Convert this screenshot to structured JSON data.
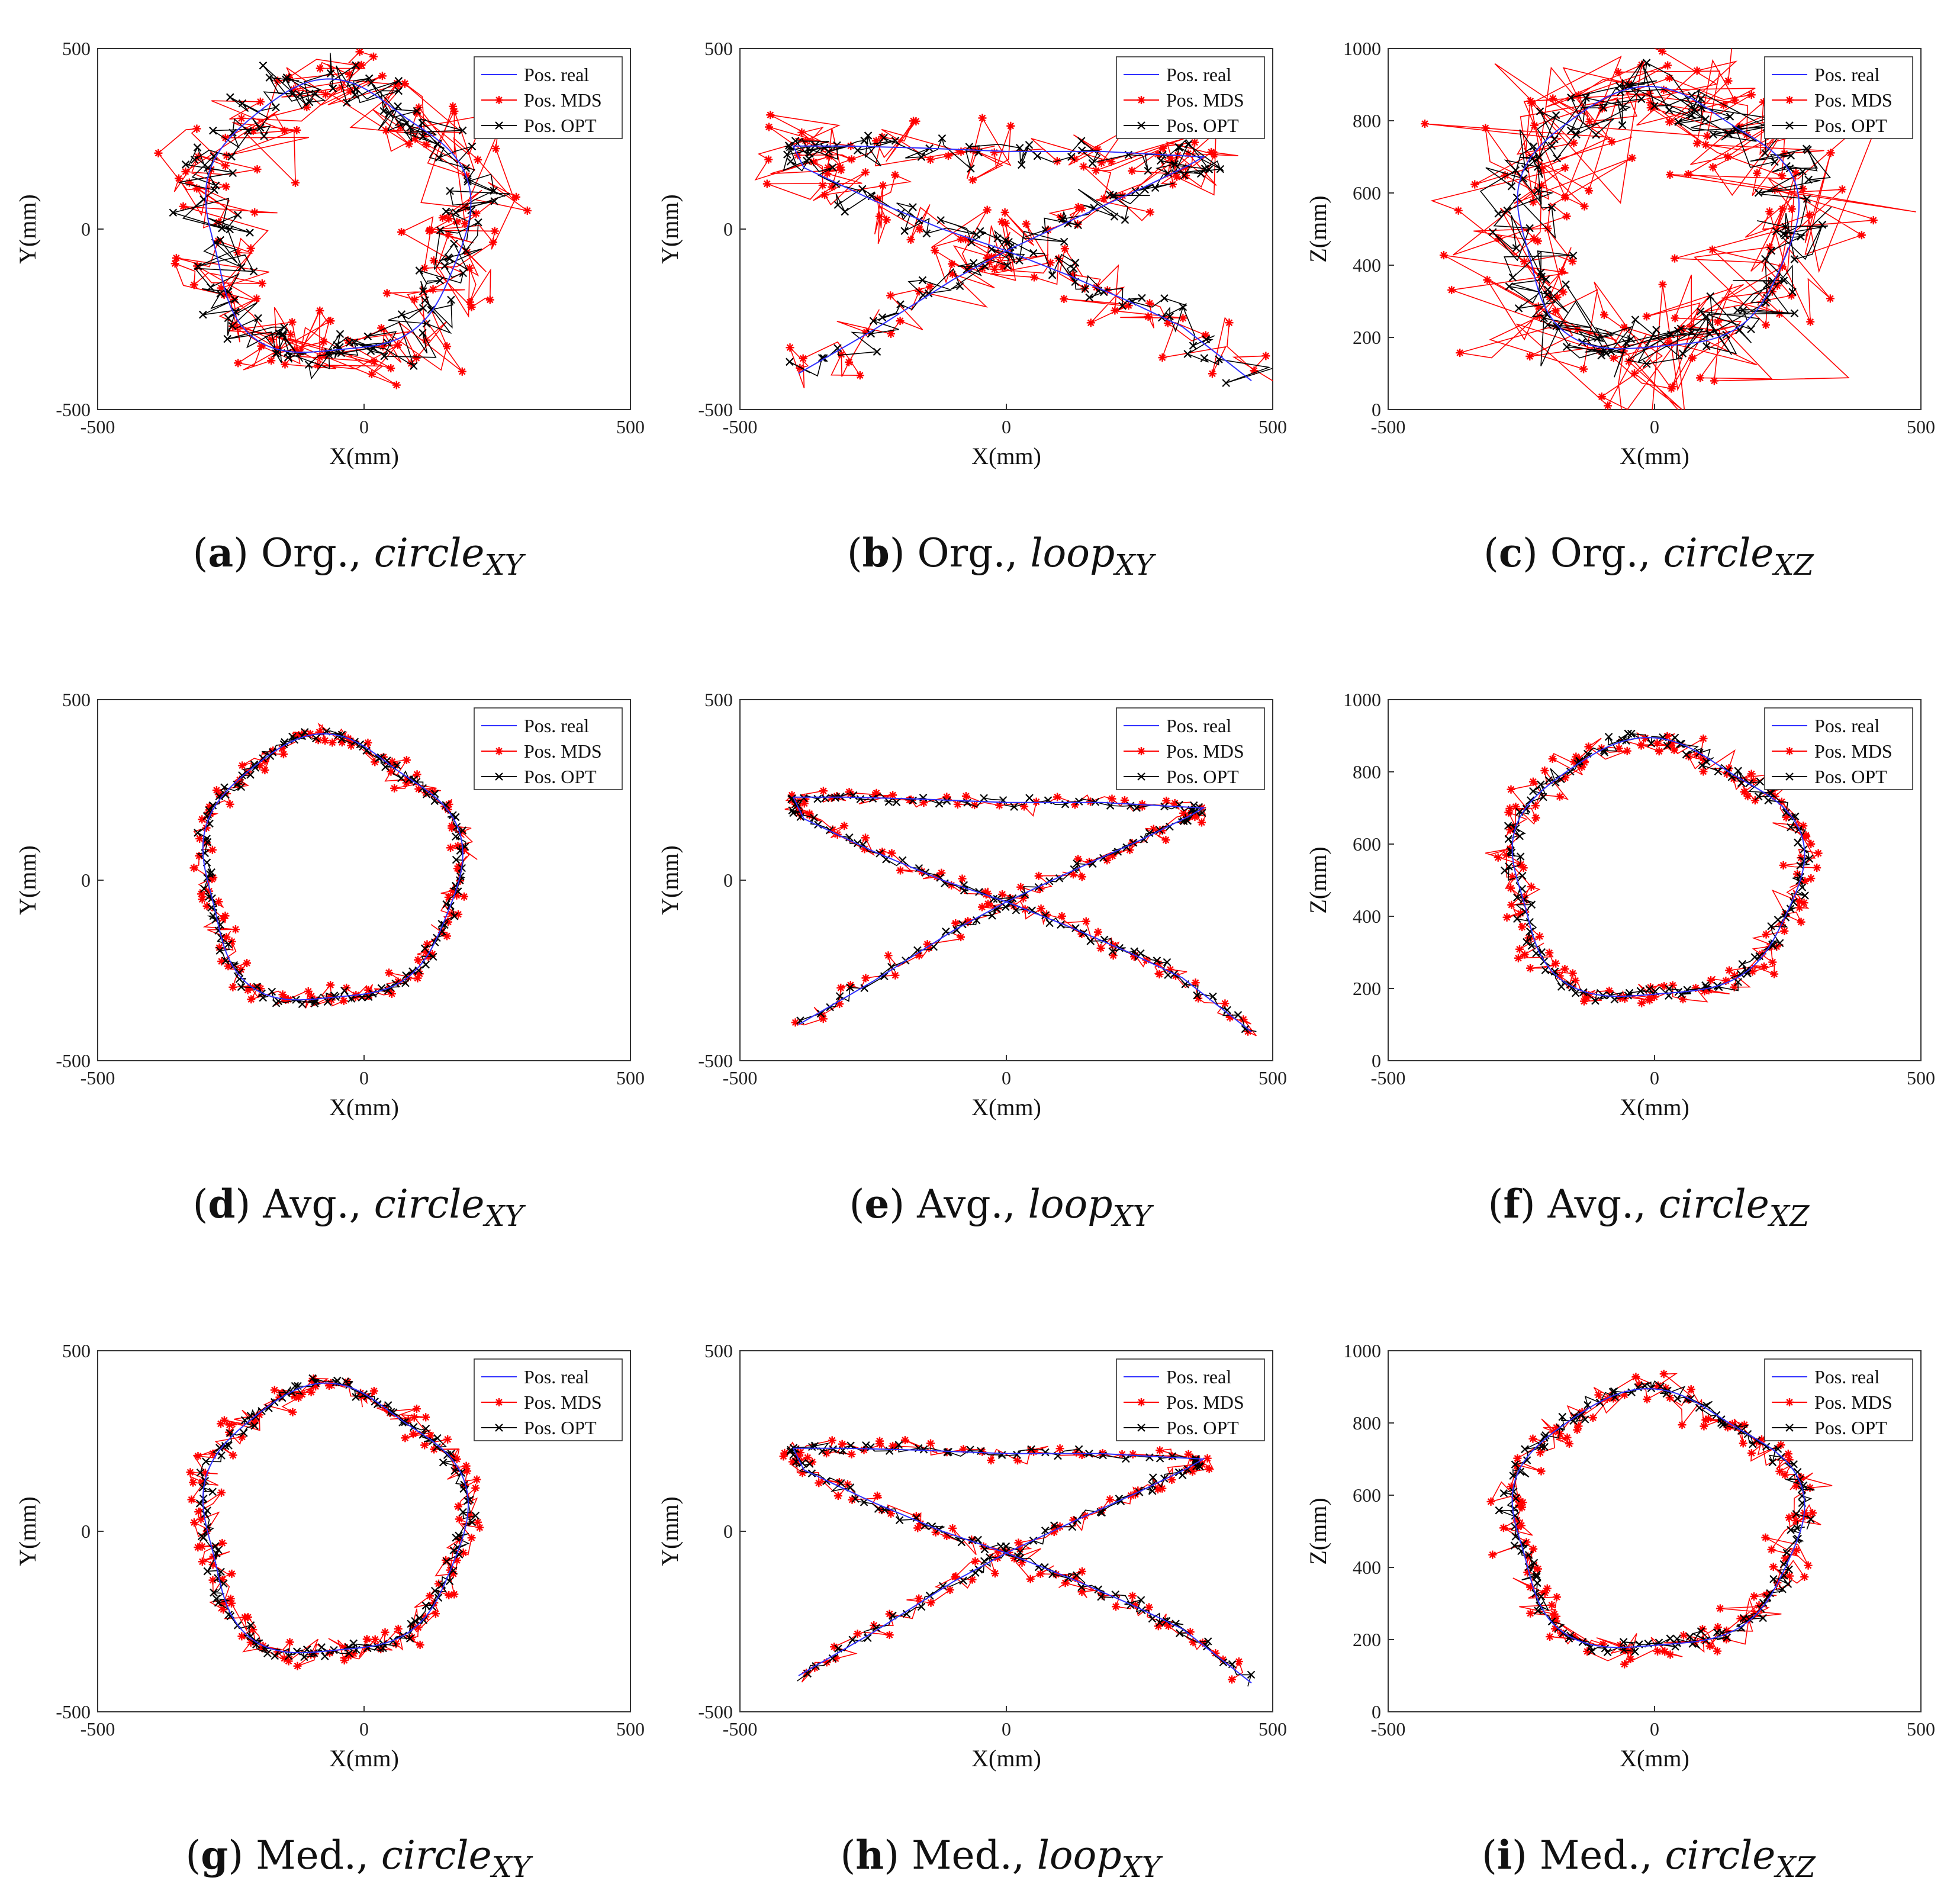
{
  "figure": {
    "legend_items": [
      "Pos. real",
      "Pos. MDS",
      "Pos. OPT"
    ],
    "colors": {
      "real": "#3030ff",
      "mds": "#ff0000",
      "opt": "#000000"
    }
  },
  "chart_data": [
    {
      "type": "line",
      "panel": "a",
      "caption_prefix": "Org.,",
      "caption_var": "circle",
      "caption_sub": "XY",
      "shape": "circle",
      "center": [
        -55,
        25
      ],
      "radii": [
        245,
        375
      ],
      "noise": {
        "opt": 45,
        "mds": 85
      },
      "xlabel": "X(mm)",
      "ylabel": "Y(mm)",
      "xlim": [
        -500,
        500
      ],
      "ylim": [
        -500,
        500
      ],
      "xticks": [
        -500,
        0,
        500
      ],
      "yticks": [
        -500,
        0,
        500
      ],
      "legend": [
        "Pos. real",
        "Pos. MDS",
        "Pos. OPT"
      ]
    },
    {
      "type": "line",
      "panel": "b",
      "caption_prefix": "Org.,",
      "caption_var": "loop",
      "caption_sub": "XY",
      "shape": "loop",
      "noise": {
        "opt": 35,
        "mds": 65
      },
      "xlabel": "X(mm)",
      "ylabel": "Y(mm)",
      "xlim": [
        -500,
        500
      ],
      "ylim": [
        -500,
        500
      ],
      "xticks": [
        -500,
        0,
        500
      ],
      "yticks": [
        -500,
        0,
        500
      ],
      "legend": [
        "Pos. real",
        "Pos. MDS",
        "Pos. OPT"
      ]
    },
    {
      "type": "line",
      "panel": "c",
      "caption_prefix": "Org.,",
      "caption_var": "circle",
      "caption_sub": "XZ",
      "shape": "circle",
      "center": [
        0,
        520
      ],
      "radii": [
        260,
        360
      ],
      "noise": {
        "opt": 60,
        "mds": 140
      },
      "xlabel": "X(mm)",
      "ylabel": "Z(mm)",
      "xlim": [
        -500,
        500
      ],
      "ylim": [
        0,
        1000
      ],
      "xticks": [
        -500,
        0,
        500
      ],
      "yticks": [
        0,
        200,
        400,
        600,
        800,
        1000
      ],
      "legend": [
        "Pos. real",
        "Pos. MDS",
        "Pos. OPT"
      ]
    },
    {
      "type": "line",
      "panel": "d",
      "caption_prefix": "Avg.,",
      "caption_var": "circle",
      "caption_sub": "XY",
      "shape": "circle",
      "center": [
        -65,
        25
      ],
      "radii": [
        240,
        365
      ],
      "noise": {
        "opt": 10,
        "mds": 22
      },
      "xlabel": "X(mm)",
      "ylabel": "Y(mm)",
      "xlim": [
        -500,
        500
      ],
      "ylim": [
        -500,
        500
      ],
      "xticks": [
        -500,
        0,
        500
      ],
      "yticks": [
        -500,
        0,
        500
      ],
      "legend": [
        "Pos. real",
        "Pos. MDS",
        "Pos. OPT"
      ]
    },
    {
      "type": "line",
      "panel": "e",
      "caption_prefix": "Avg.,",
      "caption_var": "loop",
      "caption_sub": "XY",
      "shape": "loop",
      "noise": {
        "opt": 10,
        "mds": 20
      },
      "xlabel": "X(mm)",
      "ylabel": "Y(mm)",
      "xlim": [
        -500,
        500
      ],
      "ylim": [
        -500,
        500
      ],
      "xticks": [
        -500,
        0,
        500
      ],
      "yticks": [
        -500,
        0,
        500
      ],
      "legend": [
        "Pos. real",
        "Pos. MDS",
        "Pos. OPT"
      ]
    },
    {
      "type": "line",
      "panel": "f",
      "caption_prefix": "Avg.,",
      "caption_var": "circle",
      "caption_sub": "XZ",
      "shape": "circle",
      "center": [
        0,
        525
      ],
      "radii": [
        270,
        355
      ],
      "noise": {
        "opt": 14,
        "mds": 30
      },
      "xlabel": "X(mm)",
      "ylabel": "Z(mm)",
      "xlim": [
        -500,
        500
      ],
      "ylim": [
        0,
        1000
      ],
      "xticks": [
        -500,
        0,
        500
      ],
      "yticks": [
        0,
        200,
        400,
        600,
        800,
        1000
      ],
      "legend": [
        "Pos. real",
        "Pos. MDS",
        "Pos. OPT"
      ]
    },
    {
      "type": "line",
      "panel": "g",
      "caption_prefix": "Med.,",
      "caption_var": "circle",
      "caption_sub": "XY",
      "shape": "circle",
      "center": [
        -60,
        25
      ],
      "radii": [
        245,
        370
      ],
      "noise": {
        "opt": 12,
        "mds": 26
      },
      "xlabel": "X(mm)",
      "ylabel": "Y(mm)",
      "xlim": [
        -500,
        500
      ],
      "ylim": [
        -500,
        500
      ],
      "xticks": [
        -500,
        0,
        500
      ],
      "yticks": [
        -500,
        0,
        500
      ],
      "legend": [
        "Pos. real",
        "Pos. MDS",
        "Pos. OPT"
      ]
    },
    {
      "type": "line",
      "panel": "h",
      "caption_prefix": "Med.,",
      "caption_var": "loop",
      "caption_sub": "XY",
      "shape": "loop",
      "noise": {
        "opt": 12,
        "mds": 22
      },
      "xlabel": "X(mm)",
      "ylabel": "Y(mm)",
      "xlim": [
        -500,
        500
      ],
      "ylim": [
        -500,
        500
      ],
      "xticks": [
        -500,
        0,
        500
      ],
      "yticks": [
        -500,
        0,
        500
      ],
      "legend": [
        "Pos. real",
        "Pos. MDS",
        "Pos. OPT"
      ]
    },
    {
      "type": "line",
      "panel": "i",
      "caption_prefix": "Med.,",
      "caption_var": "circle",
      "caption_sub": "XZ",
      "shape": "circle",
      "center": [
        0,
        525
      ],
      "radii": [
        270,
        355
      ],
      "noise": {
        "opt": 16,
        "mds": 34
      },
      "xlabel": "X(mm)",
      "ylabel": "Z(mm)",
      "xlim": [
        -500,
        500
      ],
      "ylim": [
        0,
        1000
      ],
      "xticks": [
        -500,
        0,
        500
      ],
      "yticks": [
        0,
        200,
        400,
        600,
        800,
        1000
      ],
      "legend": [
        "Pos. real",
        "Pos. MDS",
        "Pos. OPT"
      ]
    }
  ]
}
